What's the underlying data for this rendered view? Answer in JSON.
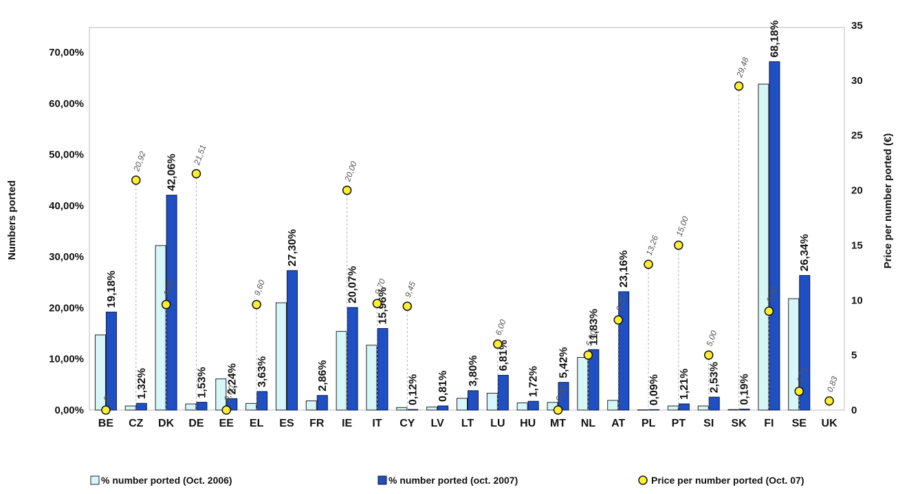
{
  "chart_data": {
    "type": "bar",
    "categories": [
      "BE",
      "CZ",
      "DK",
      "DE",
      "EE",
      "EL",
      "ES",
      "FR",
      "IE",
      "IT",
      "CY",
      "LV",
      "LT",
      "LU",
      "HU",
      "MT",
      "NL",
      "AT",
      "PL",
      "PT",
      "SI",
      "SK",
      "FI",
      "SE",
      "UK"
    ],
    "series": [
      {
        "name": "% number ported (Oct. 2006)",
        "kind": "bar",
        "axis": "left",
        "color": "#d6f6f8",
        "values": [
          14.7,
          0.8,
          32.2,
          1.2,
          6.1,
          1.3,
          21.0,
          1.8,
          15.4,
          12.7,
          0.5,
          0.6,
          2.3,
          3.3,
          1.4,
          1.5,
          10.3,
          1.9,
          0.05,
          0.8,
          0.8,
          0.1,
          63.8,
          21.8,
          null
        ],
        "labels": [
          "",
          "",
          "",
          "",
          "",
          "",
          "",
          "",
          "",
          "",
          "",
          "",
          "",
          "",
          "",
          "",
          "",
          "",
          "",
          "",
          "",
          "",
          "",
          "",
          ""
        ]
      },
      {
        "name": "% number ported (oct. 2007)",
        "kind": "bar",
        "axis": "left",
        "color": "#1f4fc2",
        "values": [
          19.18,
          1.32,
          42.06,
          1.53,
          2.24,
          3.63,
          27.3,
          2.86,
          20.07,
          15.96,
          0.12,
          0.81,
          3.8,
          6.81,
          1.72,
          5.42,
          11.83,
          23.16,
          0.09,
          1.21,
          2.53,
          0.19,
          68.18,
          26.34,
          null
        ],
        "labels": [
          "19,18%",
          "1,32%",
          "42,06%",
          "1,53%",
          "2,24%",
          "3,63%",
          "27,30%",
          "2,86%",
          "20,07%",
          "15,96%",
          "0,12%",
          "0,81%",
          "3,80%",
          "6,81%",
          "1,72%",
          "5,42%",
          "11,83%",
          "23,16%",
          "0,09%",
          "1,21%",
          "2,53%",
          "0,19%",
          "68,18%",
          "26,34%",
          ""
        ]
      },
      {
        "name": "Price per number ported (Oct. 07)",
        "kind": "scatter",
        "axis": "right",
        "color": "#ffee33",
        "values": [
          0,
          20.92,
          9.6,
          21.51,
          0,
          9.6,
          null,
          null,
          20.0,
          9.7,
          9.45,
          null,
          null,
          6.0,
          null,
          0,
          5.0,
          8.2,
          13.26,
          15.0,
          5.0,
          29.48,
          9.0,
          1.71,
          0.83
        ],
        "labels": [
          "0",
          "20,92",
          "9,60",
          "21,51",
          "0,00",
          "9,60",
          "",
          "",
          "20,00",
          "9,70",
          "9,45",
          "",
          "",
          "6,00",
          "",
          "0,00",
          "5,00",
          "8,20",
          "13,26",
          "15,00",
          "5,00",
          "29,48",
          "9,00",
          "1,71",
          "0,83"
        ]
      }
    ],
    "y_left": {
      "label": "Numbers ported",
      "ylim": [
        0,
        75
      ],
      "ticks": [
        0,
        10,
        20,
        30,
        40,
        50,
        60,
        70
      ],
      "tick_labels": [
        "0,00%",
        "10,00%",
        "20,00%",
        "30,00%",
        "40,00%",
        "50,00%",
        "60,00%",
        "70,00%"
      ]
    },
    "y_right": {
      "label": "Price per number ported (€)",
      "ylim": [
        0,
        35
      ],
      "ticks": [
        0,
        5,
        10,
        15,
        20,
        25,
        30,
        35
      ],
      "tick_labels": [
        "0",
        "5",
        "10",
        "15",
        "20",
        "25",
        "30",
        "35"
      ]
    },
    "grid": false,
    "legend_position": "bottom"
  }
}
